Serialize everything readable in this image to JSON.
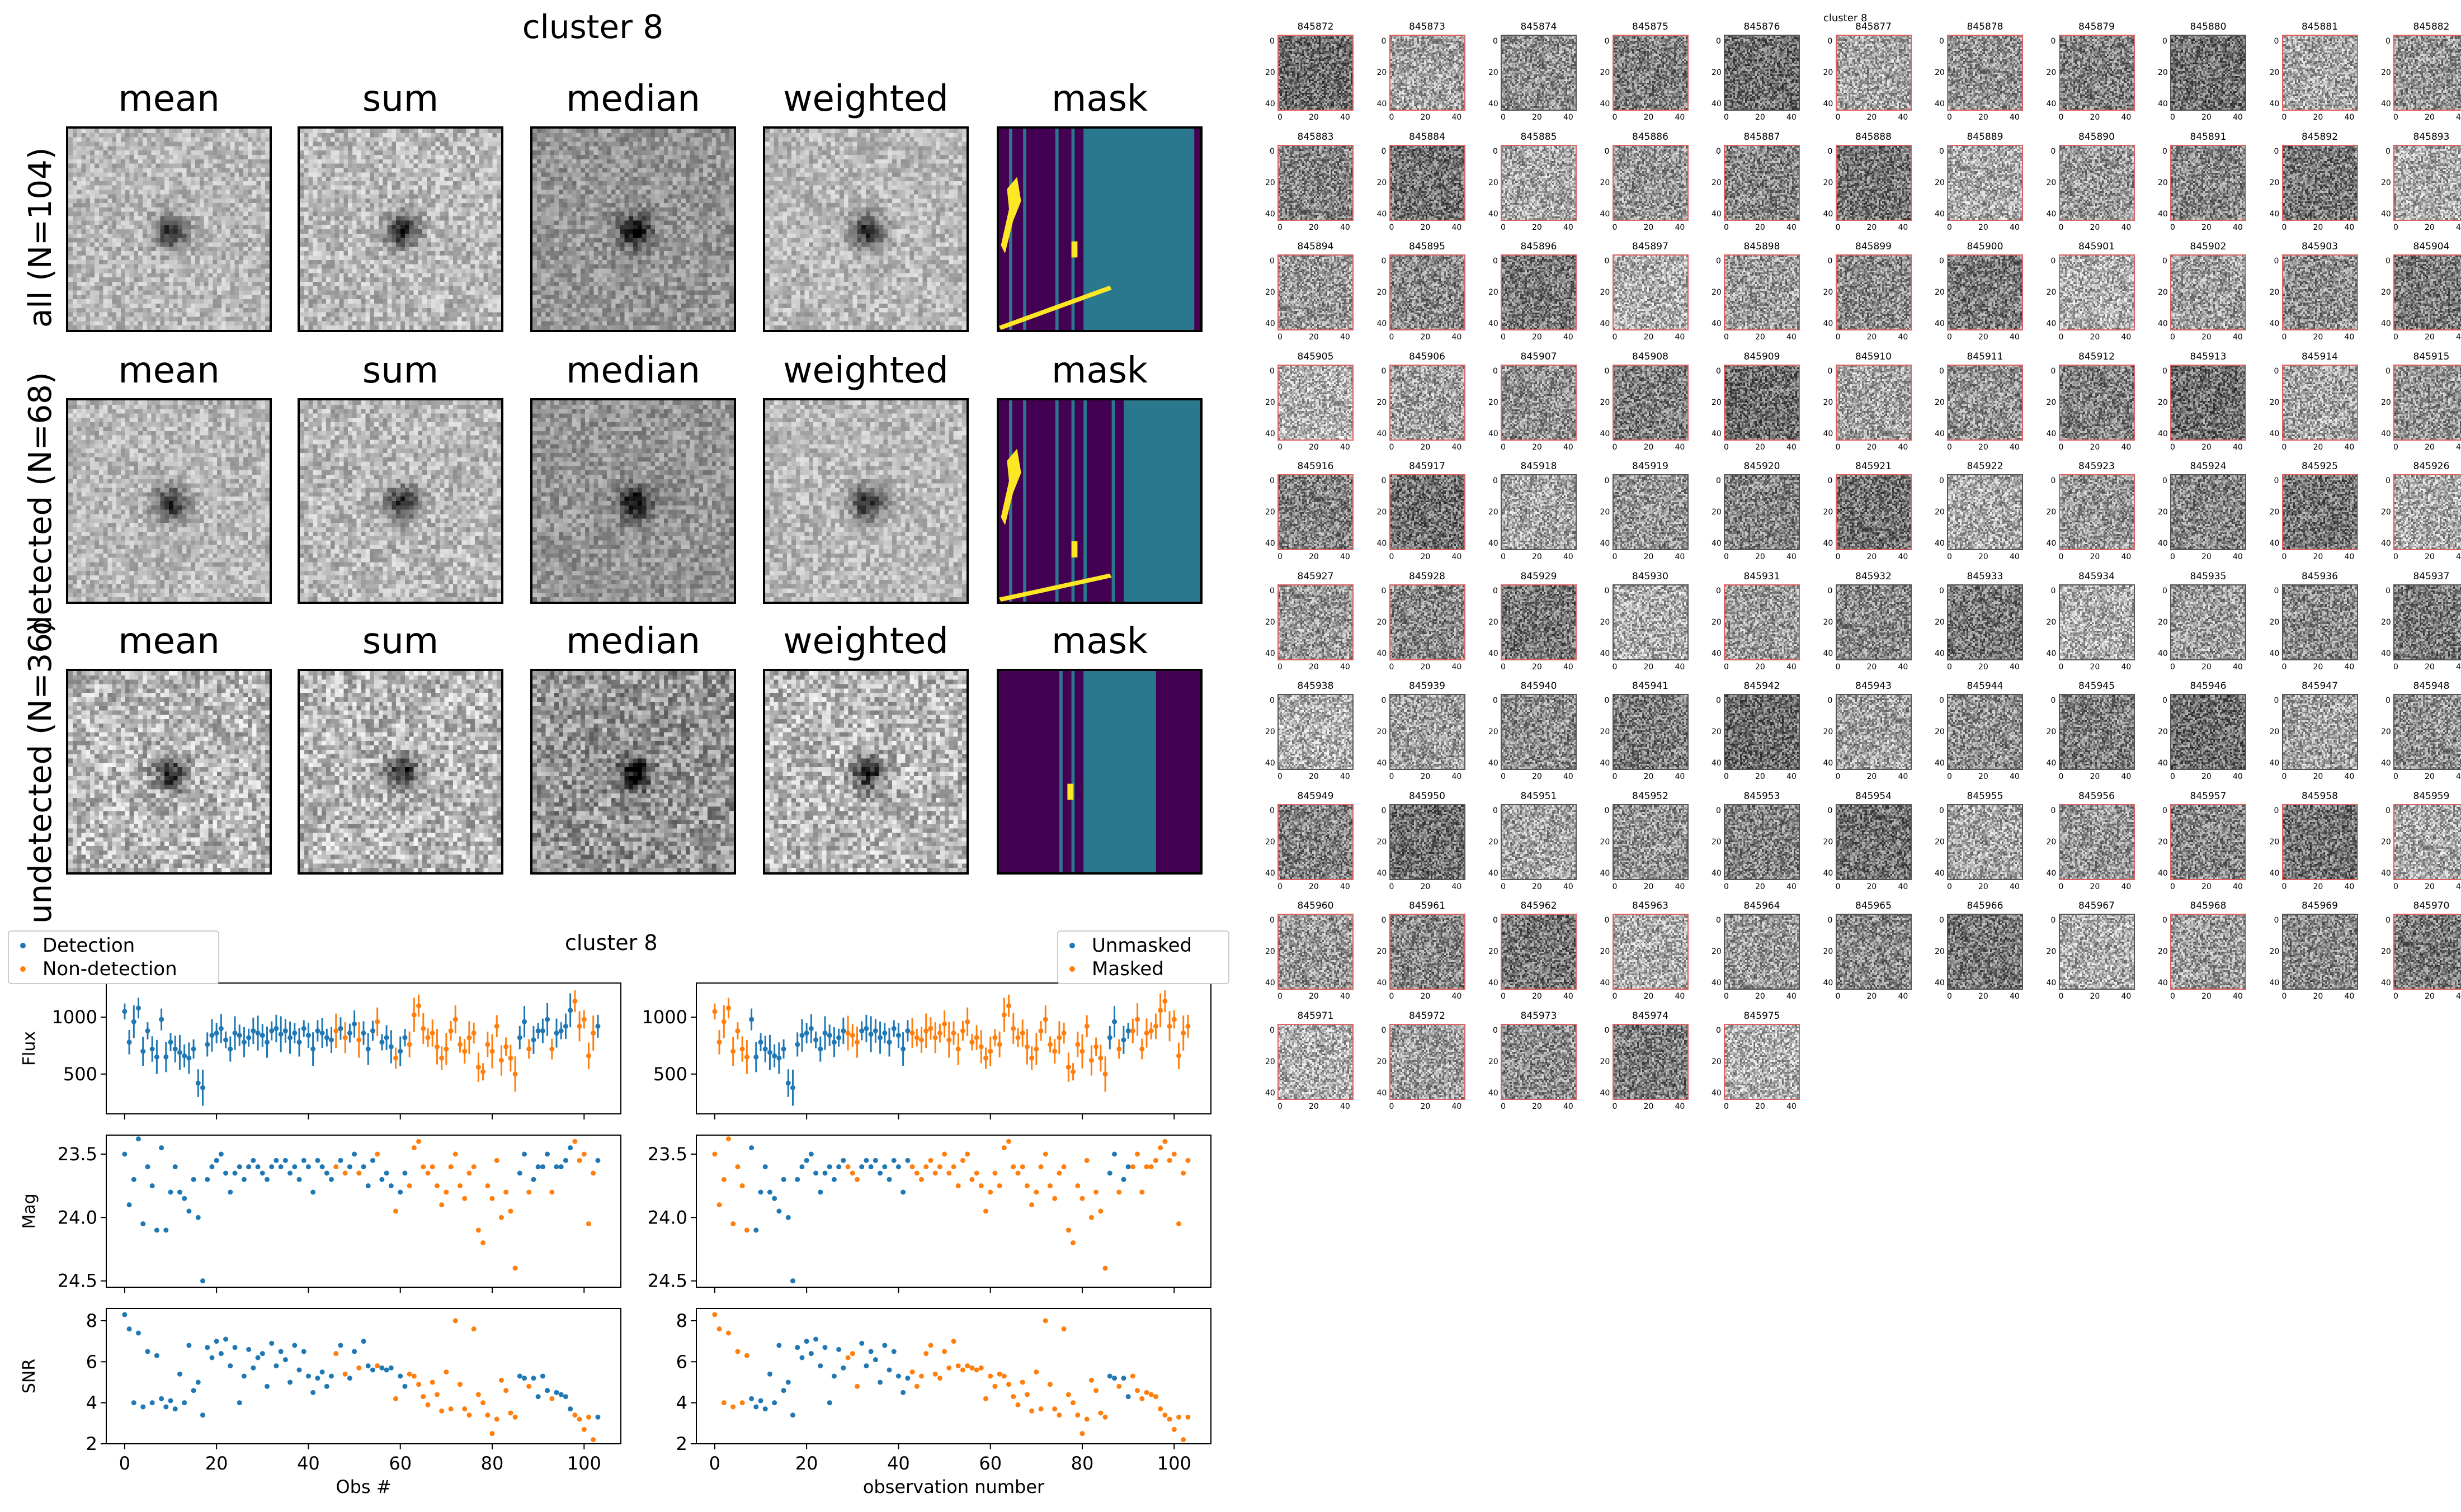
{
  "figure": {
    "left_title": "cluster 8",
    "right_title": "cluster 8"
  },
  "coadd": {
    "columns": [
      "mean",
      "sum",
      "median",
      "weighted",
      "mask"
    ],
    "rows": [
      {
        "label": "all (N=104)",
        "mask_lines": [
          0.05,
          0.12,
          0.28,
          0.36,
          0.42
        ],
        "mask_block_start": 0.43,
        "mask_block_end": 0.97,
        "mask_block_color": "#2a788e",
        "bright_block_end": 1.0
      },
      {
        "label": "detected (N=68)",
        "mask_lines": [
          0.05,
          0.12,
          0.28,
          0.36,
          0.42,
          0.56
        ],
        "mask_block_start": 0.62,
        "mask_block_end": 1.0,
        "mask_block_color": "#2a788e"
      },
      {
        "label": "undetected (N=36)",
        "mask_lines": [
          0.3,
          0.36,
          0.72
        ],
        "mask_block_start": 0.42,
        "mask_block_end": 0.78,
        "mask_block_color": "#2a788e"
      }
    ]
  },
  "lightcurve": {
    "title": "cluster 8",
    "legend_left": [
      "Detection",
      "Non-detection"
    ],
    "legend_right": [
      "Unmasked",
      "Masked"
    ],
    "left_xlabel": "Obs #",
    "right_xlabel": "observation number",
    "ylabel_flux": "Flux",
    "ylabel_mag": "Mag",
    "ylabel_snr": "SNR",
    "x_ticks": [
      "0",
      "20",
      "40",
      "60",
      "80",
      "100"
    ],
    "flux_ticks": [
      "1000",
      "500"
    ],
    "mag_ticks": [
      "23.5",
      "24.0",
      "24.5"
    ],
    "snr_ticks": [
      "8",
      "6",
      "4",
      "2"
    ]
  },
  "chart_data": [
    {
      "type": "scatter",
      "title": "cluster 8",
      "xlabel": "Obs #",
      "ylabel": "Flux",
      "xlim": [
        -4,
        108
      ],
      "ylim": [
        150,
        1300
      ],
      "series": [
        {
          "name": "Detection",
          "color": "#1f77b4"
        },
        {
          "name": "Non-detection",
          "color": "#ff7f0e"
        }
      ],
      "values": [
        1050,
        780,
        960,
        1080,
        700,
        880,
        720,
        650,
        980,
        650,
        780,
        720,
        690,
        660,
        640,
        720,
        420,
        380,
        760,
        840,
        860,
        900,
        800,
        720,
        860,
        840,
        780,
        820,
        880,
        860,
        840,
        780,
        880,
        900,
        850,
        880,
        820,
        860,
        780,
        900,
        840,
        720,
        880,
        860,
        820,
        800,
        880,
        900,
        820,
        860,
        940,
        800,
        860,
        720,
        880,
        960,
        780,
        820,
        740,
        640,
        700,
        820,
        760,
        1020,
        1100,
        900,
        820,
        860,
        740,
        640,
        720,
        880,
        980,
        760,
        700,
        820,
        860,
        560,
        520,
        760,
        700,
        920,
        620,
        740,
        640,
        500,
        820,
        960,
        720,
        800,
        880,
        880,
        980,
        720,
        860,
        880,
        920,
        1060,
        1140,
        920,
        980,
        660,
        860,
        920
      ],
      "detected": [
        1,
        1,
        1,
        1,
        1,
        1,
        1,
        1,
        1,
        1,
        1,
        1,
        1,
        1,
        1,
        1,
        1,
        1,
        1,
        1,
        1,
        1,
        1,
        1,
        1,
        1,
        1,
        1,
        1,
        1,
        1,
        1,
        1,
        1,
        1,
        1,
        1,
        1,
        1,
        1,
        1,
        1,
        1,
        1,
        1,
        1,
        0,
        1,
        0,
        1,
        1,
        0,
        1,
        1,
        1,
        0,
        1,
        1,
        1,
        0,
        1,
        1,
        0,
        0,
        0,
        0,
        0,
        0,
        0,
        0,
        0,
        0,
        0,
        0,
        0,
        0,
        0,
        0,
        0,
        0,
        0,
        0,
        0,
        0,
        0,
        0,
        1,
        1,
        0,
        1,
        1,
        1,
        1,
        0,
        1,
        1,
        1,
        1,
        0,
        0,
        0,
        0,
        0,
        1
      ]
    },
    {
      "type": "scatter",
      "xlabel": "Obs #",
      "ylabel": "Mag",
      "xlim": [
        -4,
        108
      ],
      "ylim": [
        24.55,
        23.35
      ],
      "values": [
        23.5,
        23.9,
        23.7,
        23.38,
        24.05,
        23.6,
        23.75,
        24.1,
        23.45,
        24.1,
        23.8,
        23.6,
        23.8,
        23.85,
        23.95,
        23.7,
        24.0,
        24.5,
        23.7,
        23.6,
        23.55,
        23.5,
        23.65,
        23.8,
        23.65,
        23.6,
        23.7,
        23.6,
        23.55,
        23.6,
        23.65,
        23.7,
        23.6,
        23.55,
        23.6,
        23.55,
        23.65,
        23.6,
        23.7,
        23.55,
        23.6,
        23.8,
        23.55,
        23.6,
        23.65,
        23.7,
        23.6,
        23.55,
        23.65,
        23.6,
        23.5,
        23.65,
        23.6,
        23.75,
        23.55,
        23.5,
        23.7,
        23.65,
        23.75,
        23.95,
        23.8,
        23.65,
        23.75,
        23.45,
        23.4,
        23.6,
        23.65,
        23.6,
        23.75,
        23.9,
        23.8,
        23.6,
        23.5,
        23.75,
        23.85,
        23.65,
        23.6,
        24.1,
        24.2,
        23.75,
        23.85,
        23.55,
        24.0,
        23.8,
        23.95,
        24.4,
        23.65,
        23.5,
        23.8,
        23.7,
        23.6,
        23.6,
        23.5,
        23.8,
        23.6,
        23.6,
        23.55,
        23.45,
        23.4,
        23.55,
        23.5,
        24.05,
        23.65,
        23.55
      ],
      "detected_ref": "same as flux"
    },
    {
      "type": "scatter",
      "xlabel": "Obs #",
      "ylabel": "SNR",
      "xlim": [
        -4,
        108
      ],
      "ylim": [
        2,
        8.6
      ],
      "values": [
        8.3,
        7.6,
        4.0,
        7.4,
        3.8,
        6.5,
        4.0,
        6.3,
        4.2,
        3.8,
        4.1,
        3.7,
        5.4,
        4.0,
        6.8,
        4.6,
        5.0,
        3.4,
        6.7,
        6.2,
        7.0,
        6.4,
        7.1,
        5.8,
        6.7,
        4.0,
        5.3,
        6.6,
        5.7,
        6.2,
        6.4,
        4.8,
        6.9,
        5.8,
        6.5,
        6.1,
        5.0,
        6.8,
        5.6,
        6.5,
        5.3,
        4.5,
        5.2,
        5.5,
        4.8,
        5.3,
        6.4,
        6.8,
        5.4,
        5.2,
        6.5,
        5.7,
        7.0,
        5.8,
        5.6,
        5.8,
        5.7,
        5.6,
        5.7,
        4.2,
        5.3,
        4.8,
        5.4,
        5.3,
        4.9,
        4.3,
        3.9,
        5.0,
        4.4,
        3.6,
        5.5,
        3.7,
        8.0,
        4.9,
        3.7,
        3.4,
        7.6,
        4.4,
        4.0,
        3.4,
        2.5,
        3.2,
        5.1,
        4.6,
        3.5,
        3.3,
        5.3,
        5.2,
        4.8,
        5.2,
        4.3,
        5.3,
        4.6,
        4.2,
        4.5,
        4.4,
        4.3,
        3.7,
        3.4,
        3.2,
        2.7,
        3.3,
        2.2,
        3.3
      ],
      "detected_ref": "same as flux"
    },
    {
      "type": "scatter",
      "xlabel": "observation number",
      "ylabel": "Flux",
      "xlim": [
        -4,
        108
      ],
      "series": [
        {
          "name": "Unmasked",
          "color": "#1f77b4"
        },
        {
          "name": "Masked",
          "color": "#ff7f0e"
        }
      ],
      "unmasked": [
        0,
        0,
        0,
        0,
        0,
        0,
        0,
        0,
        1,
        1,
        1,
        1,
        1,
        1,
        1,
        1,
        1,
        1,
        1,
        1,
        1,
        1,
        1,
        1,
        1,
        1,
        1,
        1,
        1,
        0,
        0,
        0,
        1,
        1,
        1,
        1,
        1,
        1,
        1,
        1,
        1,
        1,
        1,
        0,
        0,
        0,
        0,
        0,
        0,
        0,
        0,
        0,
        0,
        0,
        0,
        0,
        0,
        0,
        0,
        0,
        0,
        0,
        0,
        0,
        0,
        0,
        0,
        0,
        0,
        0,
        0,
        0,
        0,
        0,
        0,
        0,
        0,
        0,
        0,
        0,
        0,
        0,
        0,
        0,
        0,
        0,
        1,
        1,
        0,
        1,
        1,
        0,
        0,
        0,
        0,
        0,
        0,
        0,
        0,
        0,
        0,
        0,
        0,
        0
      ]
    }
  ],
  "grid": {
    "title": "cluster 8",
    "ids": [
      "845872",
      "845873",
      "845874",
      "845875",
      "845876",
      "845877",
      "845878",
      "845879",
      "845880",
      "845881",
      "845882",
      "845883",
      "845884",
      "845885",
      "845886",
      "845887",
      "845888",
      "845889",
      "845890",
      "845891",
      "845892",
      "845893",
      "845894",
      "845895",
      "845896",
      "845897",
      "845898",
      "845899",
      "845900",
      "845901",
      "845902",
      "845903",
      "845904",
      "845905",
      "845906",
      "845907",
      "845908",
      "845909",
      "845910",
      "845911",
      "845912",
      "845913",
      "845914",
      "845915",
      "845916",
      "845917",
      "845918",
      "845919",
      "845920",
      "845921",
      "845922",
      "845923",
      "845924",
      "845925",
      "845926",
      "845927",
      "845928",
      "845929",
      "845930",
      "845931",
      "845932",
      "845933",
      "845934",
      "845935",
      "845936",
      "845937",
      "845938",
      "845939",
      "845940",
      "845941",
      "845942",
      "845943",
      "845944",
      "845945",
      "845946",
      "845947",
      "845948",
      "845949",
      "845950",
      "845951",
      "845952",
      "845953",
      "845954",
      "845955",
      "845956",
      "845957",
      "845958",
      "845959",
      "845960",
      "845961",
      "845962",
      "845963",
      "845964",
      "845965",
      "845966",
      "845967",
      "845968",
      "845969",
      "845970",
      "845971",
      "845972",
      "845973",
      "845974",
      "845975"
    ],
    "red_border": [
      1,
      1,
      0,
      1,
      0,
      1,
      1,
      1,
      0,
      1,
      1,
      1,
      1,
      1,
      1,
      1,
      1,
      1,
      1,
      1,
      1,
      1,
      1,
      1,
      1,
      1,
      1,
      1,
      1,
      1,
      1,
      1,
      1,
      1,
      1,
      1,
      1,
      1,
      1,
      1,
      1,
      1,
      1,
      1,
      1,
      1,
      0,
      0,
      0,
      1,
      0,
      1,
      0,
      1,
      1,
      1,
      1,
      1,
      0,
      1,
      0,
      0,
      0,
      0,
      0,
      0,
      0,
      0,
      0,
      0,
      0,
      0,
      0,
      0,
      0,
      0,
      0,
      1,
      0,
      0,
      0,
      0,
      0,
      0,
      1,
      1,
      1,
      1,
      1,
      1,
      1,
      1,
      0,
      0,
      0,
      0,
      1,
      0,
      1,
      1,
      1,
      1,
      1,
      1
    ],
    "y_ticks": [
      "0",
      "20",
      "40"
    ],
    "x_ticks": [
      "0",
      "20",
      "40"
    ]
  }
}
